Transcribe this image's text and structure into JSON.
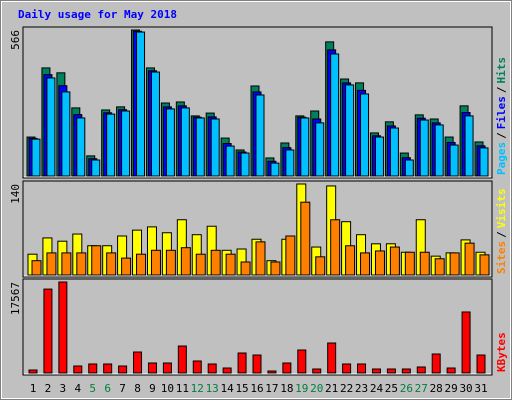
{
  "chart_data": [
    {
      "type": "bar",
      "title": "Daily usage for May 2018",
      "ylim": [
        0,
        566
      ],
      "yticks": [
        566
      ],
      "legend_separator": "/",
      "series": [
        {
          "name": "Hits",
          "color": "#00805c",
          "values": [
            151,
            419,
            400,
            264,
            78,
            256,
            268,
            566,
            419,
            283,
            287,
            233,
            244,
            147,
            101,
            349,
            70,
            128,
            233,
            252,
            520,
            376,
            361,
            167,
            210,
            89,
            237,
            221,
            151,
            272,
            132
          ]
        },
        {
          "name": "Files",
          "color": "#0000ff",
          "values": [
            146,
            393,
            350,
            238,
            67,
            245,
            257,
            561,
            408,
            268,
            272,
            228,
            229,
            126,
            93,
            326,
            57,
            110,
            228,
            221,
            489,
            361,
            332,
            156,
            194,
            71,
            224,
            206,
            130,
            246,
            117
          ]
        },
        {
          "name": "Pages",
          "color": "#00c0ff",
          "values": [
            143,
            380,
            326,
            225,
            62,
            240,
            252,
            558,
            403,
            260,
            264,
            225,
            221,
            116,
            89,
            314,
            50,
            101,
            225,
            206,
            473,
            353,
            318,
            151,
            186,
            62,
            217,
            198,
            120,
            233,
            109
          ]
        }
      ]
    },
    {
      "type": "bar",
      "ylim": [
        0,
        140
      ],
      "yticks": [
        140
      ],
      "legend_separator": "/",
      "series": [
        {
          "name": "Visits",
          "color": "#ffff00",
          "values": [
            32,
            57,
            52,
            63,
            45,
            45,
            60,
            69,
            74,
            65,
            85,
            62,
            75,
            38,
            40,
            55,
            22,
            55,
            140,
            43,
            137,
            82,
            62,
            48,
            48,
            35,
            85,
            29,
            34,
            54,
            35
          ]
        },
        {
          "name": "Sites",
          "color": "#ff8000",
          "values": [
            22,
            34,
            34,
            34,
            45,
            34,
            26,
            32,
            38,
            38,
            42,
            32,
            38,
            32,
            20,
            51,
            20,
            60,
            112,
            28,
            85,
            45,
            34,
            37,
            43,
            35,
            35,
            25,
            34,
            49,
            31
          ]
        }
      ]
    },
    {
      "type": "bar",
      "ylim": [
        0,
        17567
      ],
      "yticks": [
        17567
      ],
      "categories": [
        "1",
        "2",
        "3",
        "4",
        "5",
        "6",
        "7",
        "8",
        "9",
        "10",
        "11",
        "12",
        "13",
        "14",
        "15",
        "16",
        "17",
        "18",
        "19",
        "20",
        "21",
        "22",
        "23",
        "24",
        "25",
        "26",
        "27",
        "28",
        "29",
        "30",
        "31"
      ],
      "category_colors": [
        "#000000",
        "#000000",
        "#000000",
        "#000000",
        "#008040",
        "#008040",
        "#000000",
        "#000000",
        "#000000",
        "#000000",
        "#000000",
        "#008040",
        "#008040",
        "#000000",
        "#000000",
        "#000000",
        "#000000",
        "#000000",
        "#008040",
        "#008040",
        "#000000",
        "#000000",
        "#000000",
        "#000000",
        "#000000",
        "#008040",
        "#008040",
        "#000000",
        "#000000",
        "#000000",
        "#000000"
      ],
      "series": [
        {
          "name": "KBytes",
          "color": "#ff0000",
          "values": [
            579,
            16200,
            17567,
            1350,
            1740,
            1740,
            1350,
            4050,
            1930,
            1930,
            5210,
            2320,
            1740,
            965,
            3860,
            3470,
            386,
            1930,
            4440,
            772,
            5790,
            1740,
            1740,
            772,
            772,
            772,
            1160,
            3670,
            965,
            11780,
            3470
          ]
        }
      ]
    }
  ]
}
